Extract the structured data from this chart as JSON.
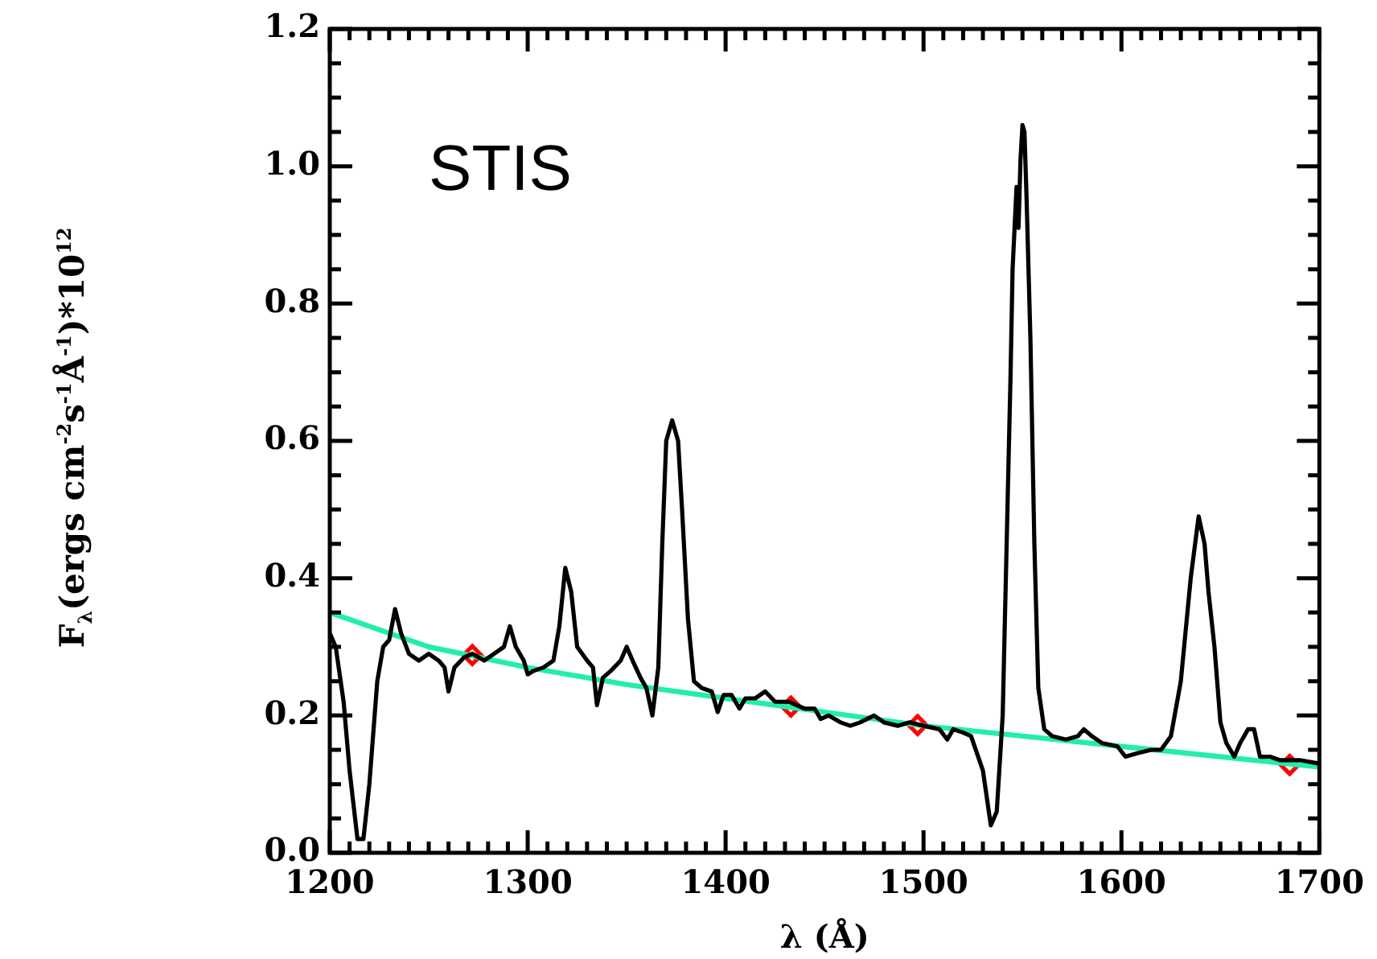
{
  "chart_data": {
    "type": "line",
    "xlabel": "λ (Å)",
    "ylabel": "F$_{λ}$(ergs cm$^{-2}$s$^{-1}$Å$^{-1}$)*10$^{12}$",
    "annotations": [
      "STIS"
    ],
    "xlim": [
      1200,
      1700
    ],
    "ylim": [
      0,
      1.2
    ],
    "xticks": [
      1200,
      {
        "value": 1210,
        "label": null
      },
      {
        "value": 1220,
        "label": null
      },
      {
        "value": 1230,
        "label": null
      },
      {
        "value": 1240,
        "label": null
      },
      {
        "value": 1250,
        "label": null
      },
      {
        "value": 1260,
        "label": null
      },
      {
        "value": 1270,
        "label": null
      },
      {
        "value": 1280,
        "label": null
      },
      {
        "value": 1290,
        "label": null
      },
      1300,
      {
        "value": 1310,
        "label": null
      },
      {
        "value": 1320,
        "label": null
      },
      {
        "value": 1330,
        "label": null
      },
      {
        "value": 1340,
        "label": null
      },
      {
        "value": 1350,
        "label": null
      },
      {
        "value": 1360,
        "label": null
      },
      {
        "value": 1370,
        "label": null
      },
      {
        "value": 1380,
        "label": null
      },
      {
        "value": 1390,
        "label": null
      },
      1400,
      {
        "value": 1410,
        "label": null
      },
      {
        "value": 1420,
        "label": null
      },
      {
        "value": 1430,
        "label": null
      },
      {
        "value": 1440,
        "label": null
      },
      {
        "value": 1450,
        "label": null
      },
      {
        "value": 1460,
        "label": null
      },
      {
        "value": 1470,
        "label": null
      },
      {
        "value": 1480,
        "label": null
      },
      {
        "value": 1490,
        "label": null
      },
      1500,
      {
        "value": 1510,
        "label": null
      },
      {
        "value": 1520,
        "label": null
      },
      {
        "value": 1530,
        "label": null
      },
      {
        "value": 1540,
        "label": null
      },
      {
        "value": 1550,
        "label": null
      },
      {
        "value": 1560,
        "label": null
      },
      {
        "value": 1570,
        "label": null
      },
      {
        "value": 1580,
        "label": null
      },
      {
        "value": 1590,
        "label": null
      },
      1600,
      {
        "value": 1610,
        "label": null
      },
      {
        "value": 1620,
        "label": null
      },
      {
        "value": 1630,
        "label": null
      },
      {
        "value": 1640,
        "label": null
      },
      {
        "value": 1650,
        "label": null
      },
      {
        "value": 1660,
        "label": null
      },
      {
        "value": 1670,
        "label": null
      },
      {
        "value": 1680,
        "label": null
      },
      {
        "value": 1690,
        "label": null
      },
      1700
    ],
    "yticks": [
      {
        "value": 0,
        "label": "0.0"
      },
      {
        "value": 0.05,
        "label": null
      },
      {
        "value": 0.1,
        "label": null
      },
      {
        "value": 0.15,
        "label": null
      },
      {
        "value": 0.2,
        "label": "0.2"
      },
      {
        "value": 0.25,
        "label": null
      },
      {
        "value": 0.3,
        "label": null
      },
      {
        "value": 0.35,
        "label": null
      },
      {
        "value": 0.4,
        "label": "0.4"
      },
      {
        "value": 0.45,
        "label": null
      },
      {
        "value": 0.5,
        "label": null
      },
      {
        "value": 0.55,
        "label": null
      },
      {
        "value": 0.6,
        "label": "0.6"
      },
      {
        "value": 0.65,
        "label": null
      },
      {
        "value": 0.7,
        "label": null
      },
      {
        "value": 0.75,
        "label": null
      },
      {
        "value": 0.8,
        "label": "0.8"
      },
      {
        "value": 0.85,
        "label": null
      },
      {
        "value": 0.9,
        "label": null
      },
      {
        "value": 0.95,
        "label": null
      },
      {
        "value": 1,
        "label": "1.0"
      },
      {
        "value": 1.05,
        "label": null
      },
      {
        "value": 1.1,
        "label": null
      },
      {
        "value": 1.15,
        "label": null
      },
      {
        "value": 1.2,
        "label": "1.2"
      }
    ],
    "grid": false,
    "legend": false,
    "series": [
      {
        "color": "#000000",
        "x": [
          1200,
          1203,
          1207,
          1210,
          1214,
          1217,
          1220,
          1224,
          1227,
          1230,
          1233,
          1236,
          1240,
          1245,
          1250,
          1255,
          1258,
          1260,
          1263,
          1268,
          1272,
          1278,
          1283,
          1288,
          1291,
          1294,
          1298,
          1300,
          1303,
          1308,
          1313,
          1316,
          1319,
          1322,
          1325,
          1330,
          1333,
          1335,
          1338,
          1342,
          1347,
          1350,
          1353,
          1357,
          1360,
          1363,
          1366,
          1368,
          1370,
          1373,
          1376,
          1378,
          1381,
          1384,
          1388,
          1393,
          1396,
          1399,
          1403,
          1407,
          1410,
          1415,
          1420,
          1425,
          1432,
          1440,
          1445,
          1448,
          1452,
          1458,
          1463,
          1468,
          1475,
          1480,
          1487,
          1493,
          1500,
          1508,
          1512,
          1515,
          1520,
          1524,
          1530,
          1534,
          1537,
          1540,
          1542,
          1544,
          1545,
          1547,
          1548,
          1549,
          1550,
          1551,
          1552,
          1554,
          1556,
          1558,
          1561,
          1565,
          1572,
          1578,
          1581,
          1585,
          1590,
          1598,
          1602,
          1608,
          1615,
          1620,
          1625,
          1630,
          1635,
          1639,
          1642,
          1644,
          1647,
          1650,
          1653,
          1657,
          1660,
          1664,
          1667,
          1670,
          1675,
          1680,
          1690,
          1700
        ],
        "values": [
          0.32,
          0.3,
          0.22,
          0.12,
          0.02,
          0.02,
          0.1,
          0.25,
          0.3,
          0.31,
          0.355,
          0.32,
          0.29,
          0.28,
          0.29,
          0.28,
          0.27,
          0.235,
          0.27,
          0.285,
          0.29,
          0.28,
          0.29,
          0.3,
          0.33,
          0.3,
          0.28,
          0.26,
          0.265,
          0.27,
          0.28,
          0.33,
          0.415,
          0.38,
          0.3,
          0.28,
          0.27,
          0.215,
          0.255,
          0.265,
          0.28,
          0.3,
          0.28,
          0.255,
          0.24,
          0.2,
          0.27,
          0.45,
          0.6,
          0.63,
          0.6,
          0.5,
          0.34,
          0.25,
          0.24,
          0.235,
          0.205,
          0.23,
          0.23,
          0.21,
          0.225,
          0.225,
          0.235,
          0.22,
          0.22,
          0.21,
          0.21,
          0.195,
          0.2,
          0.19,
          0.185,
          0.19,
          0.2,
          0.19,
          0.185,
          0.19,
          0.185,
          0.18,
          0.165,
          0.18,
          0.175,
          0.17,
          0.12,
          0.04,
          0.06,
          0.2,
          0.45,
          0.7,
          0.85,
          0.97,
          0.91,
          1.01,
          1.06,
          1.05,
          0.96,
          0.75,
          0.45,
          0.24,
          0.18,
          0.17,
          0.165,
          0.17,
          0.18,
          0.17,
          0.16,
          0.155,
          0.14,
          0.145,
          0.15,
          0.15,
          0.17,
          0.25,
          0.4,
          0.49,
          0.45,
          0.38,
          0.3,
          0.19,
          0.16,
          0.14,
          0.16,
          0.18,
          0.18,
          0.14,
          0.14,
          0.135,
          0.135,
          0.13
        ]
      },
      {
        "color": "#22eeaa",
        "x": [
          1200,
          1250,
          1300,
          1350,
          1400,
          1450,
          1500,
          1550,
          1600,
          1650,
          1700
        ],
        "values": [
          0.35,
          0.3,
          0.27,
          0.245,
          0.225,
          0.205,
          0.185,
          0.17,
          0.155,
          0.14,
          0.125
        ]
      },
      {
        "type": "scatter",
        "color": "#ff0000",
        "marker": "diamond",
        "x": [
          1272,
          1433,
          1497,
          1685
        ],
        "values": [
          0.288,
          0.213,
          0.186,
          0.128
        ]
      }
    ]
  }
}
